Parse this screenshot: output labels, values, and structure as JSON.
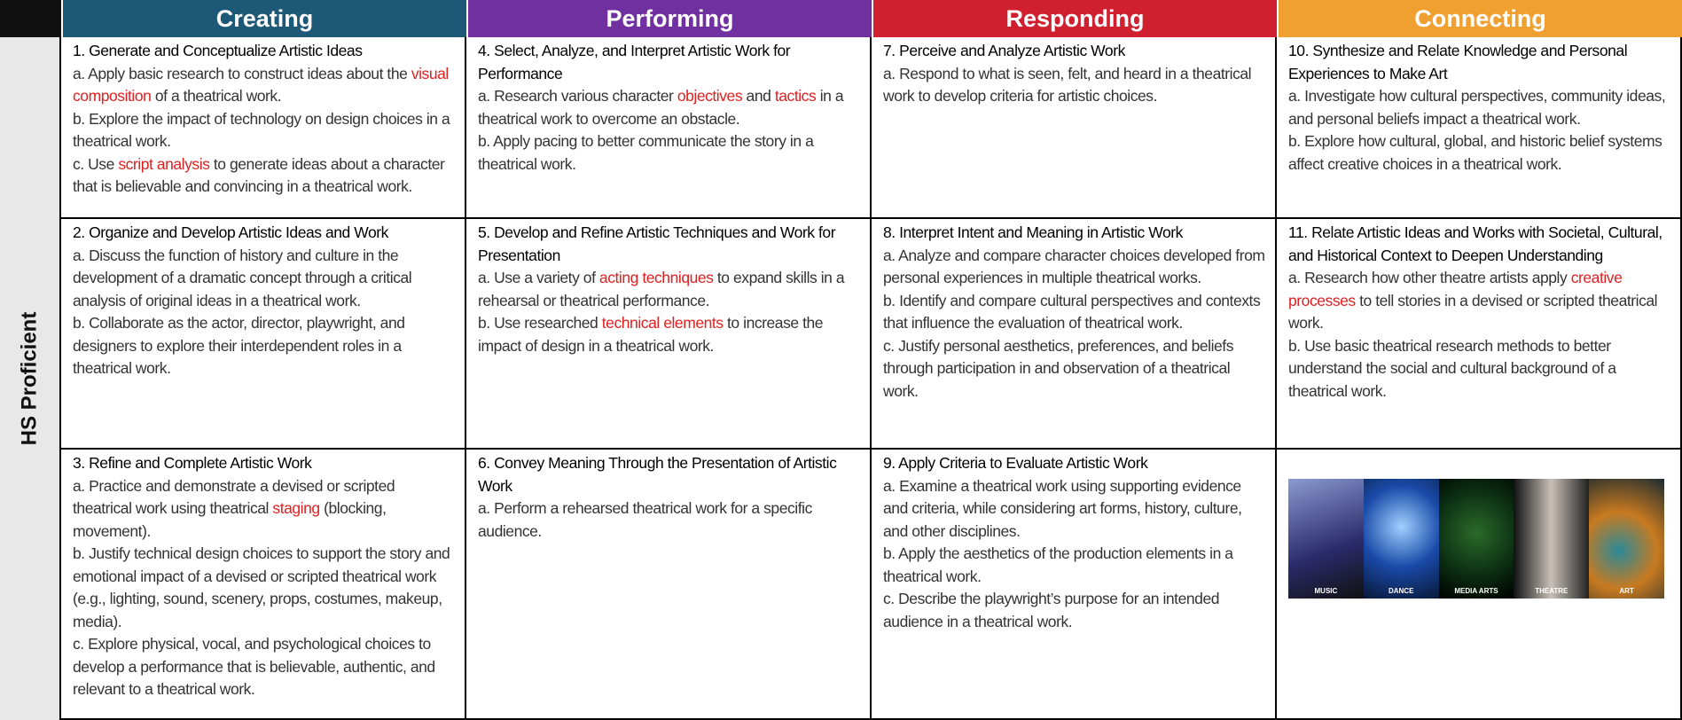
{
  "header": {
    "columns": [
      "Creating",
      "Performing",
      "Responding",
      "Connecting"
    ]
  },
  "side_label": "HS Proficient",
  "rows": [
    [
      {
        "title": "1. Generate and Conceptualize Artistic Ideas",
        "items": [
          [
            "a. Apply basic research to construct ideas about the ",
            "visual composition",
            " of a theatrical work."
          ],
          [
            "b. Explore the impact of technology on design choices in a theatrical work."
          ],
          [
            "c. Use ",
            "script analysis",
            " to generate ideas about a character that is believable and convincing in a theatrical work."
          ]
        ]
      },
      {
        "title": "4. Select, Analyze, and Interpret Artistic Work for Performance",
        "items": [
          [
            "a. Research various character ",
            "objectives",
            " and ",
            "tactics",
            " in a theatrical work to overcome an obstacle."
          ],
          [
            "b. Apply pacing to better communicate the story in a theatrical work."
          ]
        ]
      },
      {
        "title": "7. Perceive and Analyze Artistic Work",
        "items": [
          [
            "a. Respond to what is seen, felt, and heard in a theatrical work to develop criteria for artistic choices."
          ]
        ]
      },
      {
        "title": "10. Synthesize and Relate Knowledge and Personal Experiences to Make Art",
        "items": [
          [
            "a. Investigate how cultural perspectives, community ideas, and personal beliefs impact a theatrical work."
          ],
          [
            "b. Explore how cultural, global, and historic belief systems affect creative choices in a theatrical work."
          ]
        ]
      }
    ],
    [
      {
        "title": "2. Organize and Develop Artistic Ideas and Work",
        "items": [
          [
            "a. Discuss the function of history and culture in the development of a dramatic concept through a critical analysis of original ideas in a theatrical work."
          ],
          [
            "b. Collaborate as the actor, director, playwright, and designers to explore their interdependent roles in a theatrical work."
          ]
        ]
      },
      {
        "title": "5. Develop and Refine Artistic Techniques and Work for Presentation",
        "items": [
          [
            "a. Use a variety of ",
            "acting techniques",
            " to expand skills in a rehearsal or theatrical performance."
          ],
          [
            "b. Use researched ",
            "technical elements",
            " to increase the impact of design in a theatrical work."
          ]
        ]
      },
      {
        "title": "8. Interpret Intent and Meaning in Artistic Work",
        "items": [
          [
            "a. Analyze and compare character choices developed from personal experiences in multiple theatrical works."
          ],
          [
            "b. Identify and compare cultural perspectives and contexts that influence the evaluation of theatrical work."
          ],
          [
            "c. Justify personal aesthetics, preferences, and beliefs through participation in and observation of a theatrical work."
          ]
        ]
      },
      {
        "title": "11. Relate Artistic Ideas and Works with Societal, Cultural, and Historical Context to Deepen Understanding",
        "items": [
          [
            "a. Research how other theatre artists apply ",
            "creative processes",
            " to tell stories in a devised or scripted theatrical work."
          ],
          [
            "b. Use basic theatrical research methods to better understand the social and cultural background of a theatrical work."
          ]
        ]
      }
    ],
    [
      {
        "title": "3. Refine and Complete Artistic Work",
        "items": [
          [
            "a. Practice and demonstrate a devised or scripted theatrical work using theatrical ",
            "staging",
            " (blocking, movement)."
          ],
          [
            "b. Justify technical design choices to support the story and emotional impact of a devised or scripted theatrical work (e.g., lighting, sound, scenery, props, costumes, makeup, media)."
          ],
          [
            "c. Explore physical, vocal, and psychological choices to develop a performance that is believable, authentic, and relevant to a theatrical work."
          ]
        ]
      },
      {
        "title": "6. Convey Meaning Through the Presentation of Artistic Work",
        "items": [
          [
            "a. Perform a rehearsed theatrical work for a specific audience."
          ]
        ]
      },
      {
        "title": "9. Apply Criteria to Evaluate Artistic Work",
        "items": [
          [
            "a. Examine a theatrical work using supporting evidence and criteria, while considering art forms, history, culture, and other disciplines."
          ],
          [
            "b. Apply the aesthetics of the production elements in a theatrical work."
          ],
          [
            "c. Describe the playwright’s purpose for an intended audience in a theatrical work."
          ]
        ]
      },
      {
        "image_labels": [
          "MUSIC",
          "DANCE",
          "MEDIA ARTS",
          "THEATRE",
          "ART"
        ]
      }
    ]
  ]
}
